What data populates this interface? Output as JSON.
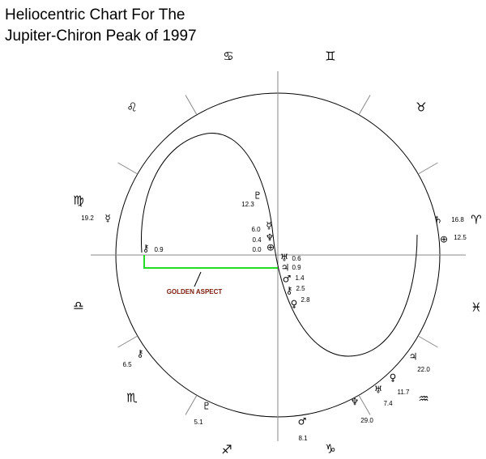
{
  "title": [
    "Heliocentric Chart For The",
    "Jupiter-Chiron Peak of 1997"
  ],
  "signs": [
    "♈",
    "♉",
    "♊",
    "♋",
    "♌",
    "♍",
    "♎",
    "♏",
    "♐",
    "♑",
    "♒",
    "♓"
  ],
  "planets": [
    {
      "glyph": "♄",
      "degree": "16.8"
    },
    {
      "glyph": "⊕",
      "degree": "12.5"
    },
    {
      "glyph": "☿",
      "degree": "19.2"
    },
    {
      "glyph": "⚷",
      "degree": "0.9"
    },
    {
      "glyph": "♇",
      "degree": "12.3"
    },
    {
      "glyph": "☿",
      "degree": "6.0"
    },
    {
      "glyph": "♆",
      "degree": "0.4"
    },
    {
      "glyph": "⊕",
      "degree": "0.0"
    },
    {
      "glyph": "♅",
      "degree": "0.6"
    },
    {
      "glyph": "♃",
      "degree": "0.9"
    },
    {
      "glyph": "♂",
      "degree": "1.4"
    },
    {
      "glyph": "⚷",
      "degree": "2.5"
    },
    {
      "glyph": "♀",
      "degree": "2.8"
    },
    {
      "glyph": "⚷",
      "degree": "6.5"
    },
    {
      "glyph": "♇",
      "degree": "5.1"
    },
    {
      "glyph": "♂",
      "degree": "8.1"
    },
    {
      "glyph": "♆",
      "degree": "29.0"
    },
    {
      "glyph": "♅",
      "degree": "7.4"
    },
    {
      "glyph": "♀",
      "degree": "11.7"
    },
    {
      "glyph": "♃",
      "degree": "22.0"
    }
  ],
  "annotation": "GOLDEN ASPECT"
}
